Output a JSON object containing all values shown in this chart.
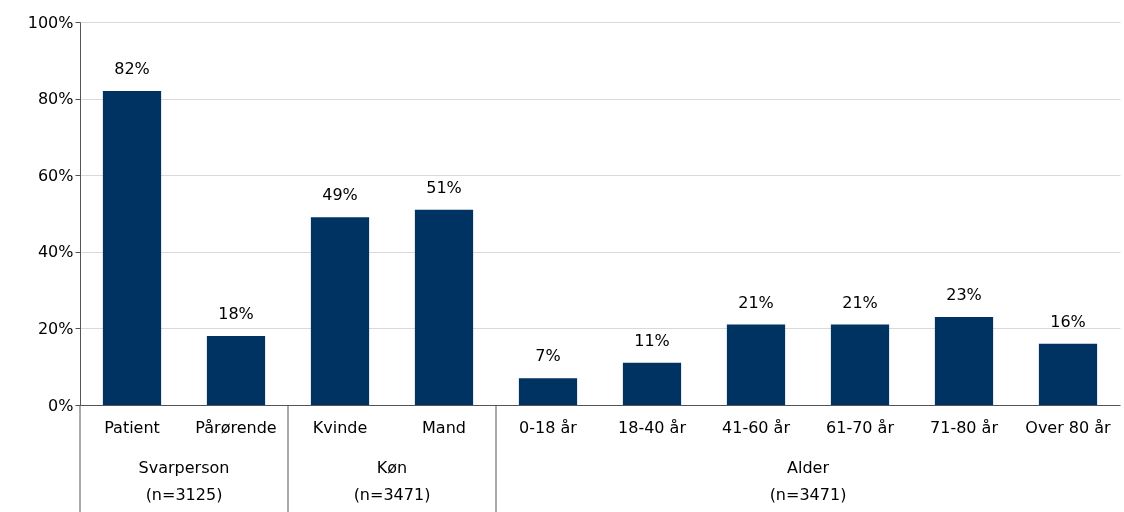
{
  "chart_data": {
    "type": "bar",
    "categories": [
      "Patient",
      "Pårørende",
      "Kvinde",
      "Mand",
      "0-18 år",
      "18-40 år",
      "41-60 år",
      "61-70 år",
      "71-80 år",
      "Over 80 år"
    ],
    "values": [
      82,
      18,
      49,
      51,
      7,
      11,
      21,
      21,
      23,
      16
    ],
    "value_labels": [
      "82%",
      "18%",
      "49%",
      "51%",
      "7%",
      "11%",
      "21%",
      "21%",
      "23%",
      "16%"
    ],
    "color": "#003262",
    "ylim": [
      0,
      100
    ],
    "yticks": [
      {
        "value": 0,
        "label": "0%"
      },
      {
        "value": 20,
        "label": "20%"
      },
      {
        "value": 40,
        "label": "40%"
      },
      {
        "value": 60,
        "label": "60%"
      },
      {
        "value": 80,
        "label": "80%"
      },
      {
        "value": 100,
        "label": "100%"
      }
    ],
    "grid": "y",
    "annotations": [
      "Svarperson\n(n=3125)",
      "Køn\n(n=3471)",
      "Alder\n(n=3471)"
    ]
  }
}
